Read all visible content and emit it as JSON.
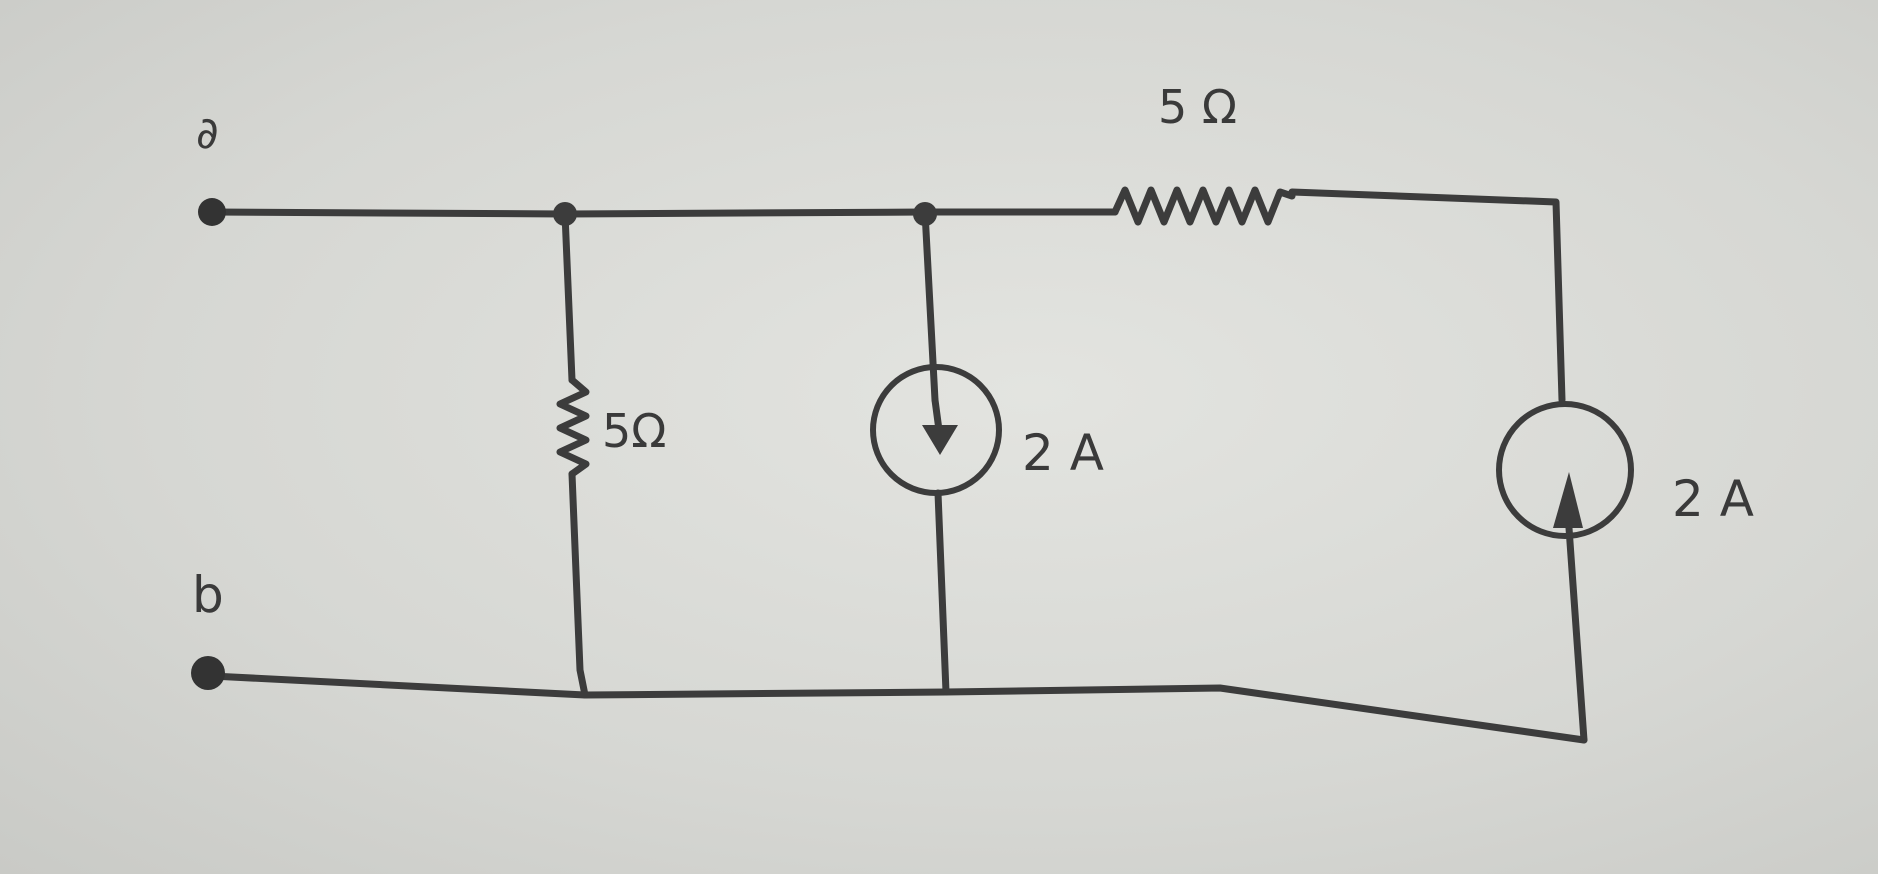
{
  "terminals": {
    "a": "∂",
    "b": "b"
  },
  "components": {
    "top_resistor": "5 Ω",
    "shunt_resistor": "5Ω",
    "source_middle": "2 A",
    "source_right": "2 A"
  },
  "source_directions": {
    "source_middle": "down",
    "source_right": "up"
  },
  "colors": {
    "paper": "#d9dad6",
    "ink": "#3c3c3c"
  }
}
